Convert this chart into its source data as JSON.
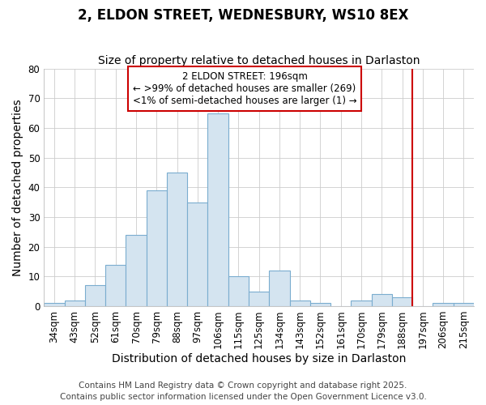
{
  "title": "2, ELDON STREET, WEDNESBURY, WS10 8EX",
  "subtitle": "Size of property relative to detached houses in Darlaston",
  "xlabel": "Distribution of detached houses by size in Darlaston",
  "ylabel": "Number of detached properties",
  "bar_labels": [
    "34sqm",
    "43sqm",
    "52sqm",
    "61sqm",
    "70sqm",
    "79sqm",
    "88sqm",
    "97sqm",
    "106sqm",
    "115sqm",
    "125sqm",
    "134sqm",
    "143sqm",
    "152sqm",
    "161sqm",
    "170sqm",
    "179sqm",
    "188sqm",
    "197sqm",
    "206sqm",
    "215sqm"
  ],
  "bar_values": [
    1,
    2,
    7,
    14,
    24,
    39,
    45,
    35,
    65,
    10,
    5,
    12,
    2,
    1,
    0,
    2,
    4,
    3,
    0,
    1,
    1
  ],
  "bar_color": "#d4e4f0",
  "bar_edge_color": "#7aadcf",
  "background_color": "#ffffff",
  "grid_color": "#cccccc",
  "vline_index": 18,
  "vline_color": "#cc0000",
  "annotation_title": "2 ELDON STREET: 196sqm",
  "annotation_line1": "← >99% of detached houses are smaller (269)",
  "annotation_line2": "<1% of semi-detached houses are larger (1) →",
  "annotation_box_color": "#ffffff",
  "annotation_box_edge": "#cc0000",
  "ylim": [
    0,
    80
  ],
  "yticks": [
    0,
    10,
    20,
    30,
    40,
    50,
    60,
    70,
    80
  ],
  "footer1": "Contains HM Land Registry data © Crown copyright and database right 2025.",
  "footer2": "Contains public sector information licensed under the Open Government Licence v3.0.",
  "title_fontsize": 12,
  "subtitle_fontsize": 10,
  "axis_label_fontsize": 10,
  "tick_fontsize": 8.5,
  "annotation_fontsize": 8.5,
  "footer_fontsize": 7.5
}
